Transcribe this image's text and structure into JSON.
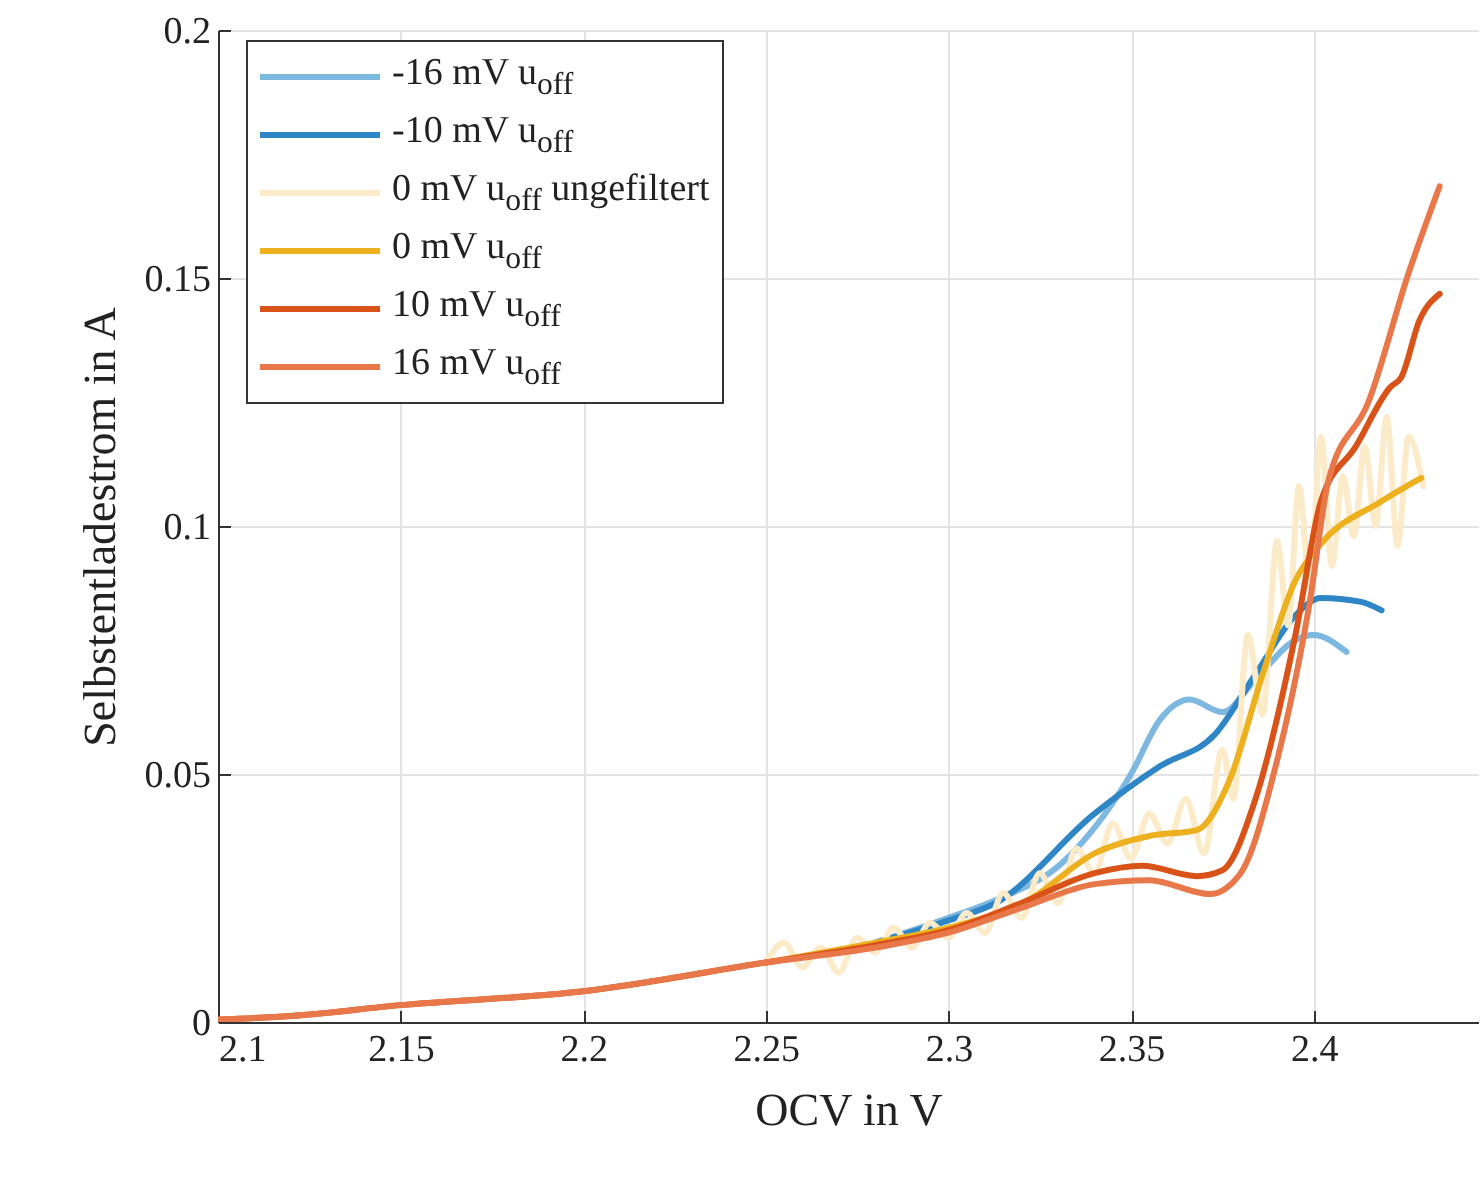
{
  "chart_data": {
    "type": "line",
    "xlabel": "OCV in V",
    "ylabel": "Selbstentladestrom in A",
    "xlim": [
      2.1,
      2.445
    ],
    "ylim": [
      0,
      0.2
    ],
    "xticks": [
      2.1,
      2.15,
      2.2,
      2.25,
      2.3,
      2.35,
      2.4
    ],
    "yticks": [
      0,
      0.05,
      0.1,
      0.15,
      0.2
    ],
    "grid": true,
    "legend": "top left",
    "line_style": "solid",
    "marker": "none",
    "series": [
      {
        "name": "-16 mV u$_{off}$",
        "color": "#7db8e1",
        "x": [
          2.28,
          2.3,
          2.313,
          2.331,
          2.35,
          2.358,
          2.366,
          2.375,
          2.384,
          2.395,
          2.4,
          2.409
        ],
        "values": [
          0.016,
          0.021,
          0.0246,
          0.032,
          0.05,
          0.061,
          0.065,
          0.0625,
          0.069,
          0.077,
          0.078,
          0.0746
        ]
      },
      {
        "name": "-10 mV u$_{off}$",
        "color": "#2f86c6",
        "x": [
          2.28,
          2.3,
          2.313,
          2.34,
          2.358,
          2.373,
          2.384,
          2.395,
          2.402,
          2.413,
          2.4186
        ],
        "values": [
          0.016,
          0.0205,
          0.024,
          0.042,
          0.0516,
          0.058,
          0.07,
          0.082,
          0.0855,
          0.0847,
          0.083
        ]
      },
      {
        "name": "0 mV u$_{off}$ ungefiltert",
        "color": "#fbebc8",
        "x": [
          2.25,
          2.255,
          2.26,
          2.265,
          2.27,
          2.275,
          2.28,
          2.285,
          2.29,
          2.295,
          2.3,
          2.305,
          2.31,
          2.315,
          2.32,
          2.325,
          2.33,
          2.335,
          2.34,
          2.345,
          2.35,
          2.355,
          2.36,
          2.365,
          2.37,
          2.375,
          2.378,
          2.382,
          2.386,
          2.39,
          2.393,
          2.396,
          2.399,
          2.402,
          2.405,
          2.408,
          2.411,
          2.414,
          2.417,
          2.42,
          2.423,
          2.426,
          2.43
        ],
        "values": [
          0.012,
          0.016,
          0.011,
          0.015,
          0.01,
          0.017,
          0.014,
          0.019,
          0.015,
          0.02,
          0.017,
          0.022,
          0.018,
          0.026,
          0.021,
          0.03,
          0.024,
          0.035,
          0.03,
          0.04,
          0.033,
          0.042,
          0.036,
          0.045,
          0.034,
          0.055,
          0.045,
          0.078,
          0.062,
          0.097,
          0.08,
          0.108,
          0.088,
          0.118,
          0.092,
          0.11,
          0.098,
          0.116,
          0.1,
          0.122,
          0.096,
          0.118,
          0.108
        ]
      },
      {
        "name": "0 mV u$_{off}$",
        "color": "#edb120",
        "x": [
          2.25,
          2.28,
          2.3,
          2.322,
          2.34,
          2.355,
          2.368,
          2.377,
          2.386,
          2.395,
          2.402,
          2.4186,
          2.4295
        ],
        "values": [
          0.012,
          0.016,
          0.019,
          0.0246,
          0.034,
          0.0375,
          0.0387,
          0.0488,
          0.07,
          0.089,
          0.0964,
          0.105,
          0.1097
        ]
      },
      {
        "name": "10 mV u$_{off}$",
        "color": "#d95319",
        "x": [
          2.1,
          2.12,
          2.15,
          2.2,
          2.25,
          2.28,
          2.3,
          2.32,
          2.34,
          2.353,
          2.368,
          2.375,
          2.384,
          2.395,
          2.402,
          2.4115,
          2.421,
          2.424,
          2.429,
          2.4345
        ],
        "values": [
          0.0005,
          0.0012,
          0.0034,
          0.0062,
          0.012,
          0.0155,
          0.0185,
          0.024,
          0.03,
          0.0315,
          0.0294,
          0.0306,
          0.0448,
          0.078,
          0.105,
          0.116,
          0.128,
          0.13,
          0.1415,
          0.1468
        ]
      },
      {
        "name": "16 mV u$_{off}$",
        "color": "#e8784a",
        "x": [
          2.1,
          2.12,
          2.15,
          2.2,
          2.25,
          2.28,
          2.3,
          2.32,
          2.34,
          2.355,
          2.3716,
          2.38,
          2.3896,
          2.399,
          2.404,
          2.415,
          2.426,
          2.4345
        ],
        "values": [
          0.0005,
          0.0012,
          0.0034,
          0.0062,
          0.012,
          0.015,
          0.018,
          0.023,
          0.0278,
          0.0286,
          0.0258,
          0.03,
          0.0516,
          0.085,
          0.109,
          0.125,
          0.151,
          0.1685
        ]
      }
    ]
  }
}
